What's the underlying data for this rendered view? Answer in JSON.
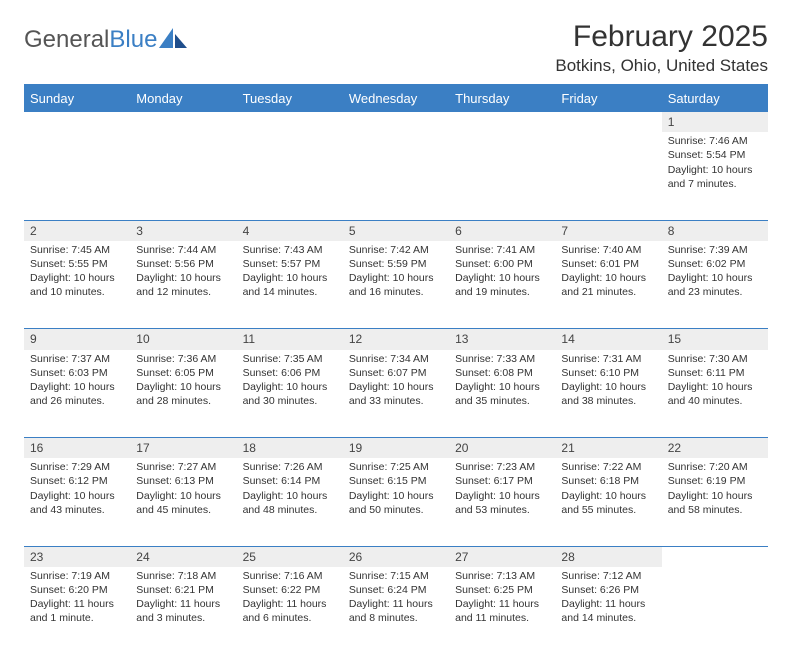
{
  "brand": {
    "part1": "General",
    "part2": "Blue"
  },
  "title": "February 2025",
  "location": "Botkins, Ohio, United States",
  "colors": {
    "accent": "#3b7fc4",
    "header_bg": "#3b7fc4",
    "header_fg": "#ffffff",
    "daynum_bg": "#eeeeee",
    "text": "#333333",
    "background": "#ffffff"
  },
  "days_of_week": [
    "Sunday",
    "Monday",
    "Tuesday",
    "Wednesday",
    "Thursday",
    "Friday",
    "Saturday"
  ],
  "weeks": [
    {
      "nums": [
        "",
        "",
        "",
        "",
        "",
        "",
        "1"
      ],
      "cells": [
        "",
        "",
        "",
        "",
        "",
        "",
        "Sunrise: 7:46 AM\nSunset: 5:54 PM\nDaylight: 10 hours and 7 minutes."
      ]
    },
    {
      "nums": [
        "2",
        "3",
        "4",
        "5",
        "6",
        "7",
        "8"
      ],
      "cells": [
        "Sunrise: 7:45 AM\nSunset: 5:55 PM\nDaylight: 10 hours and 10 minutes.",
        "Sunrise: 7:44 AM\nSunset: 5:56 PM\nDaylight: 10 hours and 12 minutes.",
        "Sunrise: 7:43 AM\nSunset: 5:57 PM\nDaylight: 10 hours and 14 minutes.",
        "Sunrise: 7:42 AM\nSunset: 5:59 PM\nDaylight: 10 hours and 16 minutes.",
        "Sunrise: 7:41 AM\nSunset: 6:00 PM\nDaylight: 10 hours and 19 minutes.",
        "Sunrise: 7:40 AM\nSunset: 6:01 PM\nDaylight: 10 hours and 21 minutes.",
        "Sunrise: 7:39 AM\nSunset: 6:02 PM\nDaylight: 10 hours and 23 minutes."
      ]
    },
    {
      "nums": [
        "9",
        "10",
        "11",
        "12",
        "13",
        "14",
        "15"
      ],
      "cells": [
        "Sunrise: 7:37 AM\nSunset: 6:03 PM\nDaylight: 10 hours and 26 minutes.",
        "Sunrise: 7:36 AM\nSunset: 6:05 PM\nDaylight: 10 hours and 28 minutes.",
        "Sunrise: 7:35 AM\nSunset: 6:06 PM\nDaylight: 10 hours and 30 minutes.",
        "Sunrise: 7:34 AM\nSunset: 6:07 PM\nDaylight: 10 hours and 33 minutes.",
        "Sunrise: 7:33 AM\nSunset: 6:08 PM\nDaylight: 10 hours and 35 minutes.",
        "Sunrise: 7:31 AM\nSunset: 6:10 PM\nDaylight: 10 hours and 38 minutes.",
        "Sunrise: 7:30 AM\nSunset: 6:11 PM\nDaylight: 10 hours and 40 minutes."
      ]
    },
    {
      "nums": [
        "16",
        "17",
        "18",
        "19",
        "20",
        "21",
        "22"
      ],
      "cells": [
        "Sunrise: 7:29 AM\nSunset: 6:12 PM\nDaylight: 10 hours and 43 minutes.",
        "Sunrise: 7:27 AM\nSunset: 6:13 PM\nDaylight: 10 hours and 45 minutes.",
        "Sunrise: 7:26 AM\nSunset: 6:14 PM\nDaylight: 10 hours and 48 minutes.",
        "Sunrise: 7:25 AM\nSunset: 6:15 PM\nDaylight: 10 hours and 50 minutes.",
        "Sunrise: 7:23 AM\nSunset: 6:17 PM\nDaylight: 10 hours and 53 minutes.",
        "Sunrise: 7:22 AM\nSunset: 6:18 PM\nDaylight: 10 hours and 55 minutes.",
        "Sunrise: 7:20 AM\nSunset: 6:19 PM\nDaylight: 10 hours and 58 minutes."
      ]
    },
    {
      "nums": [
        "23",
        "24",
        "25",
        "26",
        "27",
        "28",
        ""
      ],
      "cells": [
        "Sunrise: 7:19 AM\nSunset: 6:20 PM\nDaylight: 11 hours and 1 minute.",
        "Sunrise: 7:18 AM\nSunset: 6:21 PM\nDaylight: 11 hours and 3 minutes.",
        "Sunrise: 7:16 AM\nSunset: 6:22 PM\nDaylight: 11 hours and 6 minutes.",
        "Sunrise: 7:15 AM\nSunset: 6:24 PM\nDaylight: 11 hours and 8 minutes.",
        "Sunrise: 7:13 AM\nSunset: 6:25 PM\nDaylight: 11 hours and 11 minutes.",
        "Sunrise: 7:12 AM\nSunset: 6:26 PM\nDaylight: 11 hours and 14 minutes.",
        ""
      ]
    }
  ]
}
